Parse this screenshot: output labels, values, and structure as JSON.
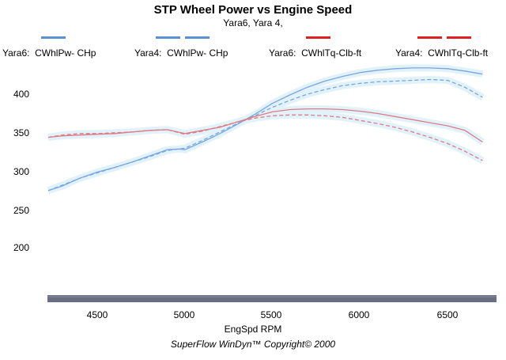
{
  "chart_data": {
    "type": "line",
    "title": "STP Wheel Power vs Engine Speed",
    "subtitle": "Yara6, Yara 4,",
    "xlabel": "EngSpd RPM",
    "xlim": [
      4200,
      6720
    ],
    "ylim": [
      140,
      440
    ],
    "x_ticks": [
      "4500",
      "5000",
      "5500",
      "6000",
      "6500"
    ],
    "y_ticks": [
      "200",
      "250",
      "300",
      "350",
      "400"
    ],
    "legend": [
      {
        "run": "Yara6:",
        "channel": "CWhlPw- CHp",
        "color": "#5b8fd6",
        "style": "solid"
      },
      {
        "run": "Yara4:",
        "channel": "CWhlPw- CHp",
        "color": "#5b8fd6",
        "style": "dashed"
      },
      {
        "run": "Yara6:",
        "channel": "CWhlTq-Clb-ft",
        "color": "#e02020",
        "style": "solid"
      },
      {
        "run": "Yara4:",
        "channel": "CWhlTq-Clb-ft",
        "color": "#e02020",
        "style": "dashed"
      }
    ],
    "series": [
      {
        "name": "Yara6: CWhlPw- CHp",
        "color": "#7aa6df",
        "dash": false,
        "x": [
          4220,
          4300,
          4400,
          4500,
          4600,
          4700,
          4800,
          4900,
          4970,
          5000,
          5100,
          5200,
          5300,
          5400,
          5500,
          5600,
          5700,
          5800,
          5900,
          6000,
          6100,
          6200,
          6300,
          6400,
          6500,
          6600,
          6700
        ],
        "y": [
          276,
          282,
          292,
          300,
          306,
          313,
          321,
          329,
          330,
          329,
          339,
          350,
          362,
          375,
          389,
          400,
          410,
          418,
          424,
          429,
          432,
          434,
          435,
          435,
          434,
          431,
          427
        ]
      },
      {
        "name": "Yara4: CWhlPw- CHp",
        "color": "#7aa6df",
        "dash": true,
        "x": [
          4220,
          4300,
          4400,
          4500,
          4600,
          4700,
          4800,
          4900,
          5000,
          5100,
          5200,
          5300,
          5400,
          5500,
          5600,
          5700,
          5800,
          5900,
          6000,
          6100,
          6200,
          6300,
          6400,
          6500,
          6600,
          6700
        ],
        "y": [
          276,
          283,
          292,
          299,
          306,
          313,
          320,
          328,
          331,
          341,
          352,
          363,
          373,
          384,
          393,
          401,
          407,
          412,
          415,
          417,
          418,
          419,
          420,
          419,
          410,
          397
        ]
      },
      {
        "name": "Yara6: CWhlTq-Clb-ft",
        "color": "#e07a84",
        "dash": false,
        "x": [
          4220,
          4300,
          4400,
          4500,
          4600,
          4700,
          4800,
          4900,
          5000,
          5100,
          5200,
          5300,
          5400,
          5500,
          5600,
          5700,
          5800,
          5900,
          6000,
          6100,
          6200,
          6300,
          6400,
          6500,
          6600,
          6700
        ],
        "y": [
          345,
          347,
          348,
          349,
          350,
          352,
          354,
          355,
          350,
          354,
          358,
          365,
          372,
          378,
          381,
          382,
          382,
          381,
          379,
          376,
          372,
          368,
          364,
          360,
          354,
          339
        ]
      },
      {
        "name": "Yara4: CWhlTq-Clb-ft",
        "color": "#e07a84",
        "dash": true,
        "x": [
          4220,
          4300,
          4400,
          4500,
          4600,
          4700,
          4800,
          4900,
          5000,
          5100,
          5200,
          5300,
          5400,
          5500,
          5600,
          5700,
          5800,
          5900,
          6000,
          6100,
          6200,
          6300,
          6400,
          6500,
          6600,
          6700
        ],
        "y": [
          345,
          348,
          350,
          350,
          351,
          352,
          354,
          355,
          349,
          353,
          359,
          365,
          370,
          373,
          374,
          374,
          373,
          371,
          367,
          363,
          358,
          352,
          345,
          337,
          327,
          315
        ]
      }
    ]
  },
  "footer": "SuperFlow WinDyn™   Copyright© 2000",
  "colors": {
    "axis_bar": "#6a6e82",
    "band": "#e2f2fa"
  }
}
